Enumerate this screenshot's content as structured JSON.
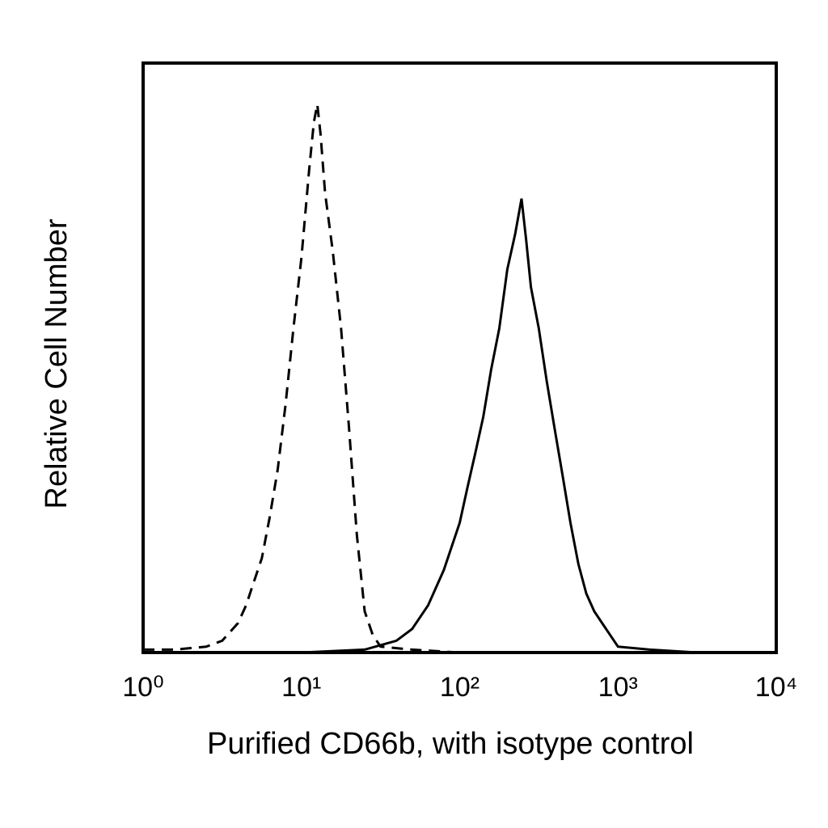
{
  "chart_data": {
    "type": "line",
    "xlabel": "Purified CD66b, with isotype control",
    "ylabel": "Relative Cell Number",
    "xscale": "log",
    "xlim": [
      1,
      10000
    ],
    "xticks": [
      {
        "value": 1,
        "label": "10⁰"
      },
      {
        "value": 10,
        "label": "10¹"
      },
      {
        "value": 100,
        "label": "10²"
      },
      {
        "value": 1000,
        "label": "10³"
      },
      {
        "value": 10000,
        "label": "10⁴"
      }
    ],
    "ylim": [
      0,
      100
    ],
    "grid": false,
    "series": [
      {
        "color": "#000000",
        "line_style": "dashed",
        "x": [
          1,
          1.58,
          2.51,
          3.16,
          3.98,
          4.47,
          5.01,
          5.62,
          6.31,
          7.08,
          7.94,
          8.91,
          10,
          11.2,
          12.0,
          12.6,
          13.2,
          14.1,
          15.8,
          17.8,
          20,
          22.4,
          25.1,
          28.2,
          31.6,
          50.1,
          100,
          316,
          10000
        ],
        "values": [
          0.5,
          0.5,
          1,
          2,
          5,
          8,
          12,
          16,
          23,
          31,
          42,
          55,
          67,
          82,
          90,
          93,
          88,
          78,
          68,
          55,
          38,
          20,
          7,
          3,
          1,
          0.5,
          0,
          0,
          0
        ]
      },
      {
        "color": "#000000",
        "line_style": "solid",
        "x": [
          1,
          10,
          25.1,
          39.8,
          50.1,
          63.1,
          79.4,
          100,
          112,
          126,
          141,
          158,
          178,
          200,
          224,
          246,
          263,
          282,
          316,
          355,
          398,
          447,
          501,
          562,
          631,
          708,
          794,
          891,
          1000,
          1585,
          3162,
          10000
        ],
        "values": [
          0,
          0,
          0.5,
          2,
          4,
          8,
          14,
          22,
          28,
          34,
          40,
          48,
          55,
          65,
          71,
          77,
          70,
          62,
          55,
          46,
          38,
          30,
          22,
          15,
          10,
          7,
          5,
          3,
          1,
          0.5,
          0,
          0
        ]
      }
    ]
  }
}
